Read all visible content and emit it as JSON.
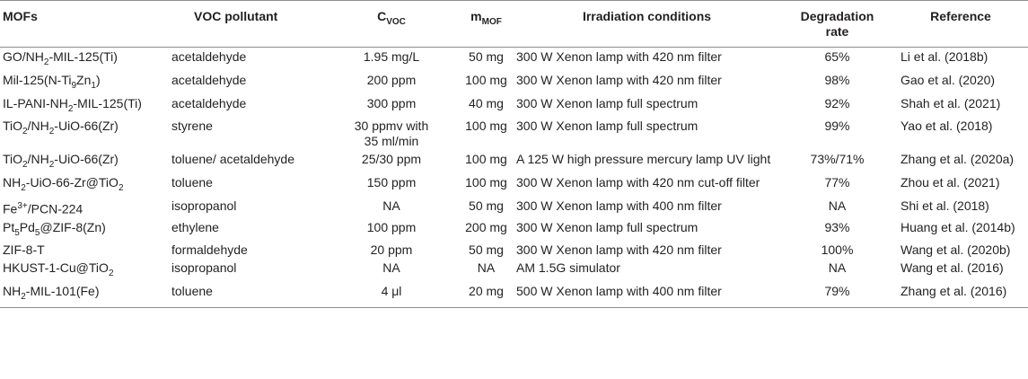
{
  "headers": {
    "mofs": "MOFs",
    "voc_pollutant": "VOC pollutant",
    "c_voc_main": "C",
    "c_voc_sub": "VOC",
    "m_mof_main": "m",
    "m_mof_sub": "MOF",
    "irradiation": "Irradiation conditions",
    "degradation": "Degradation rate",
    "reference": "Reference"
  },
  "rows": [
    {
      "mof": [
        {
          "t": "GO/NH"
        },
        {
          "sub": "2"
        },
        {
          "t": "-MIL-125(Ti)"
        }
      ],
      "voc": "acetaldehyde",
      "cvoc": "1.95 mg/L",
      "mmof": "50 mg",
      "irr": "300 W Xenon lamp with 420 nm filter",
      "deg": "65%",
      "ref": "Li et al. (2018b)"
    },
    {
      "mof": [
        {
          "t": "Mil-125(N-Ti"
        },
        {
          "sub": "9"
        },
        {
          "t": "Zn"
        },
        {
          "sub": "1"
        },
        {
          "t": ")"
        }
      ],
      "voc": "acetaldehyde",
      "cvoc": "200 ppm",
      "mmof": "100 mg",
      "irr": "300 W Xenon lamp with 420 nm filter",
      "deg": "98%",
      "ref": "Gao et al. (2020)"
    },
    {
      "mof": [
        {
          "t": "IL-PANI-NH"
        },
        {
          "sub": "2"
        },
        {
          "t": "-MIL-125(Ti)"
        }
      ],
      "voc": "acetaldehyde",
      "cvoc": "300 ppm",
      "mmof": "40 mg",
      "irr": "300 W Xenon lamp full spectrum",
      "deg": "92%",
      "ref": "Shah et al. (2021)"
    },
    {
      "mof": [
        {
          "t": "TiO"
        },
        {
          "sub": "2"
        },
        {
          "t": "/NH"
        },
        {
          "sub": "2"
        },
        {
          "t": "-UiO-66(Zr)"
        }
      ],
      "voc": "styrene",
      "cvoc": "30 ppmv with 35 ml/min",
      "mmof": "100 mg",
      "irr": "300 W Xenon lamp full spectrum",
      "deg": "99%",
      "ref": "Yao et al. (2018)"
    },
    {
      "mof": [
        {
          "t": "TiO"
        },
        {
          "sub": "2"
        },
        {
          "t": "/NH"
        },
        {
          "sub": "2"
        },
        {
          "t": "-UiO-66(Zr)"
        }
      ],
      "voc": "toluene/ acetaldehyde",
      "cvoc": "25/30 ppm",
      "mmof": "100 mg",
      "irr": "A 125 W high pressure mercury lamp UV light",
      "deg": "73%/71%",
      "ref": "Zhang et al. (2020a)"
    },
    {
      "mof": [
        {
          "t": "NH"
        },
        {
          "sub": "2"
        },
        {
          "t": "-UiO-66-Zr@TiO"
        },
        {
          "sub": "2"
        }
      ],
      "voc": "toluene",
      "cvoc": "150 ppm",
      "mmof": "100 mg",
      "irr": "300 W Xenon lamp with 420 nm cut-off filter",
      "deg": "77%",
      "ref": "Zhou et al. (2021)"
    },
    {
      "mof": [
        {
          "t": "Fe"
        },
        {
          "sup": "3+"
        },
        {
          "t": "/PCN-224"
        }
      ],
      "voc": "isopropanol",
      "cvoc": "NA",
      "mmof": "50 mg",
      "irr": "300 W Xenon lamp with 400 nm filter",
      "deg": "NA",
      "ref": "Shi et al. (2018)"
    },
    {
      "mof": [
        {
          "t": "Pt"
        },
        {
          "sub": "5"
        },
        {
          "t": "Pd"
        },
        {
          "sub": "5"
        },
        {
          "t": "@ZIF-8(Zn)"
        }
      ],
      "voc": "ethylene",
      "cvoc": "100 ppm",
      "mmof": "200 mg",
      "irr": "300 W Xenon lamp full spectrum",
      "deg": "93%",
      "ref": "Huang et al. (2014b)"
    },
    {
      "mof": [
        {
          "t": "ZIF-8-T"
        }
      ],
      "voc": "formaldehyde",
      "cvoc": "20 ppm",
      "mmof": "50 mg",
      "irr": "300 W Xenon lamp with 420 nm filter",
      "deg": "100%",
      "ref": "Wang et al. (2020b)"
    },
    {
      "mof": [
        {
          "t": "HKUST-1-Cu@TiO"
        },
        {
          "sub": "2"
        }
      ],
      "voc": "isopropanol",
      "cvoc": "NA",
      "mmof": "NA",
      "irr": "AM 1.5G simulator",
      "deg": "NA",
      "ref": "Wang et al. (2016)"
    },
    {
      "mof": [
        {
          "t": "NH"
        },
        {
          "sub": "2"
        },
        {
          "t": "-MIL-101(Fe)"
        }
      ],
      "voc": "toluene",
      "cvoc": "4 μl",
      "mmof": "20 mg",
      "irr": "500 W Xenon lamp with 400 nm filter",
      "deg": "79%",
      "ref": "Zhang et al. (2016)"
    }
  ]
}
